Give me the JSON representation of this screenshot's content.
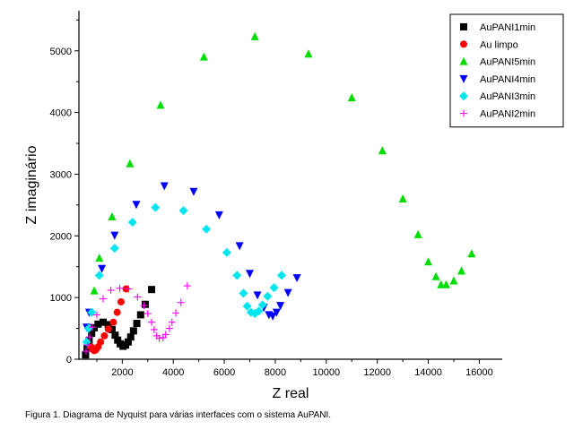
{
  "caption": "Figura 1. Diagrama de Nyquist para várias interfaces com o sistema AuPANI.",
  "chart_data": {
    "type": "scatter",
    "title": "",
    "xlabel": "Z real",
    "ylabel": "Z imaginário",
    "xlim": [
      300,
      16900
    ],
    "ylim": [
      0,
      5650
    ],
    "xticks": [
      2000,
      4000,
      6000,
      8000,
      10000,
      12000,
      14000,
      16000
    ],
    "yticks": [
      0,
      1000,
      2000,
      3000,
      4000,
      5000
    ],
    "legend_position": "top-right",
    "grid": false,
    "series": [
      {
        "name": "AuPANI1min",
        "color": "#000000",
        "marker": "square",
        "points": [
          [
            560,
            70
          ],
          [
            620,
            180
          ],
          [
            700,
            300
          ],
          [
            800,
            420
          ],
          [
            900,
            510
          ],
          [
            1050,
            570
          ],
          [
            1250,
            600
          ],
          [
            1450,
            560
          ],
          [
            1600,
            480
          ],
          [
            1720,
            390
          ],
          [
            1820,
            310
          ],
          [
            1920,
            250
          ],
          [
            2030,
            210
          ],
          [
            2130,
            230
          ],
          [
            2230,
            280
          ],
          [
            2330,
            360
          ],
          [
            2440,
            460
          ],
          [
            2570,
            580
          ],
          [
            2720,
            720
          ],
          [
            2900,
            890
          ],
          [
            3150,
            1130
          ]
        ]
      },
      {
        "name": "Au limpo",
        "color": "#ff0000",
        "marker": "circle",
        "points": [
          [
            780,
            200
          ],
          [
            840,
            160
          ],
          [
            900,
            140
          ],
          [
            960,
            150
          ],
          [
            1050,
            200
          ],
          [
            1150,
            280
          ],
          [
            1300,
            380
          ],
          [
            1450,
            490
          ],
          [
            1650,
            600
          ],
          [
            1800,
            760
          ],
          [
            1950,
            930
          ],
          [
            2150,
            1140
          ]
        ]
      },
      {
        "name": "AuPANI5min",
        "color": "#00dd00",
        "marker": "triangle-up",
        "points": [
          [
            900,
            1110
          ],
          [
            1100,
            1640
          ],
          [
            1600,
            2310
          ],
          [
            2300,
            3170
          ],
          [
            3500,
            4120
          ],
          [
            5200,
            4900
          ],
          [
            7200,
            5230
          ],
          [
            9300,
            4950
          ],
          [
            11000,
            4240
          ],
          [
            12200,
            3380
          ],
          [
            13000,
            2600
          ],
          [
            13600,
            2020
          ],
          [
            14000,
            1580
          ],
          [
            14300,
            1340
          ],
          [
            14500,
            1210
          ],
          [
            14700,
            1210
          ],
          [
            15000,
            1270
          ],
          [
            15300,
            1430
          ],
          [
            15700,
            1710
          ]
        ]
      },
      {
        "name": "AuPANI4min",
        "color": "#0000ff",
        "marker": "triangle-down",
        "points": [
          [
            600,
            520
          ],
          [
            700,
            760
          ],
          [
            1200,
            1470
          ],
          [
            1700,
            2010
          ],
          [
            2550,
            2510
          ],
          [
            3650,
            2810
          ],
          [
            4800,
            2720
          ],
          [
            5800,
            2340
          ],
          [
            6600,
            1840
          ],
          [
            7000,
            1390
          ],
          [
            7300,
            1040
          ],
          [
            7550,
            840
          ],
          [
            7750,
            720
          ],
          [
            7900,
            700
          ],
          [
            8050,
            760
          ],
          [
            8200,
            870
          ],
          [
            8500,
            1080
          ],
          [
            8850,
            1320
          ]
        ]
      },
      {
        "name": "AuPANI3min",
        "color": "#00e5ee",
        "marker": "diamond",
        "points": [
          [
            600,
            280
          ],
          [
            680,
            500
          ],
          [
            800,
            760
          ],
          [
            1100,
            1360
          ],
          [
            1700,
            1800
          ],
          [
            2400,
            2220
          ],
          [
            3300,
            2460
          ],
          [
            4400,
            2410
          ],
          [
            5300,
            2110
          ],
          [
            6100,
            1730
          ],
          [
            6500,
            1360
          ],
          [
            6750,
            1070
          ],
          [
            6900,
            860
          ],
          [
            7050,
            760
          ],
          [
            7200,
            740
          ],
          [
            7350,
            780
          ],
          [
            7500,
            880
          ],
          [
            7700,
            1020
          ],
          [
            7950,
            1160
          ],
          [
            8250,
            1360
          ]
        ]
      },
      {
        "name": "AuPANI2min",
        "color": "#ff00ff",
        "marker": "plus",
        "points": [
          [
            580,
            130
          ],
          [
            640,
            230
          ],
          [
            720,
            360
          ],
          [
            830,
            520
          ],
          [
            1000,
            720
          ],
          [
            1250,
            980
          ],
          [
            1550,
            1120
          ],
          [
            1900,
            1150
          ],
          [
            2250,
            1140
          ],
          [
            2600,
            1010
          ],
          [
            2850,
            870
          ],
          [
            3000,
            740
          ],
          [
            3150,
            600
          ],
          [
            3250,
            480
          ],
          [
            3350,
            380
          ],
          [
            3450,
            340
          ],
          [
            3600,
            350
          ],
          [
            3700,
            400
          ],
          [
            3850,
            500
          ],
          [
            3950,
            600
          ],
          [
            4100,
            750
          ],
          [
            4300,
            920
          ],
          [
            4550,
            1190
          ]
        ]
      }
    ]
  }
}
